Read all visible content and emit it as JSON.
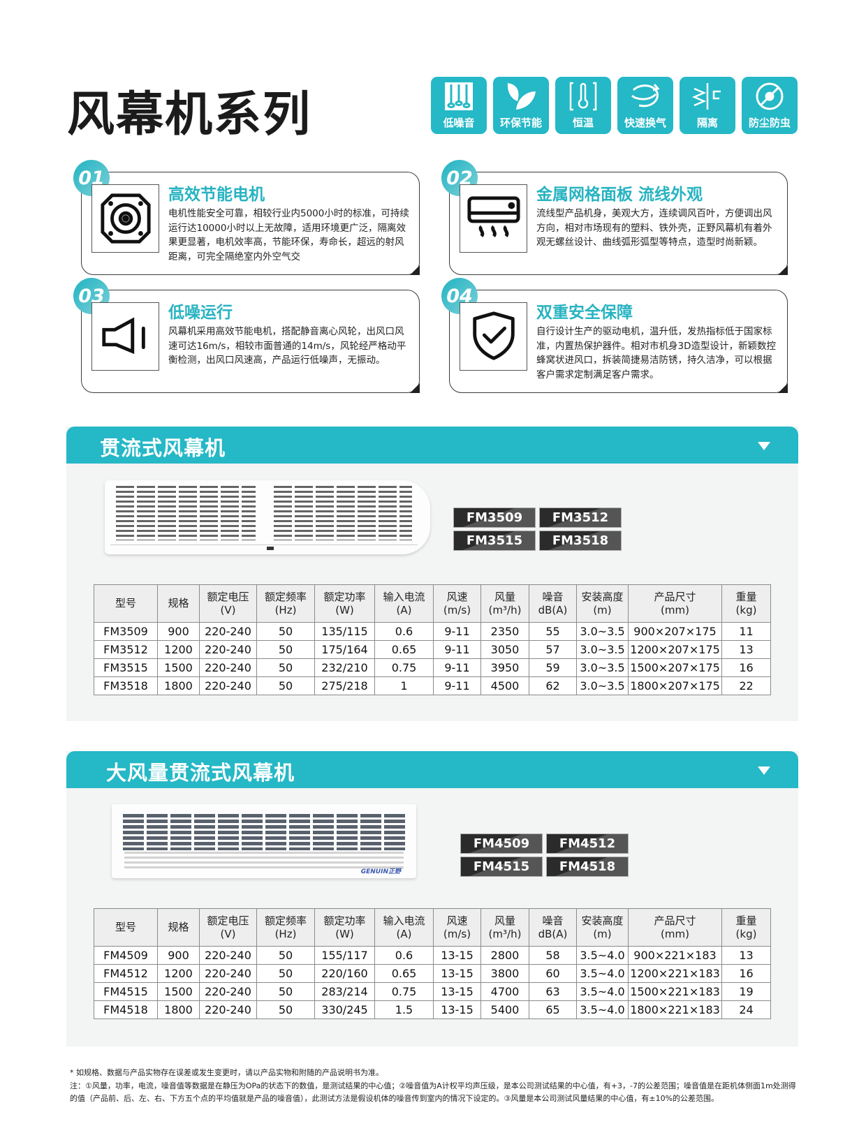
{
  "title": "风幕机系列",
  "feature_icons": [
    {
      "label": "低噪音",
      "icon": "sliders-icon"
    },
    {
      "label": "环保节能",
      "icon": "leaf-icon"
    },
    {
      "label": "恒温",
      "icon": "thermometer-icon"
    },
    {
      "label": "快速换气",
      "icon": "airflow-icon"
    },
    {
      "label": "隔离",
      "icon": "barrier-icon"
    },
    {
      "label": "防尘防虫",
      "icon": "no-bug-icon"
    }
  ],
  "cards": [
    {
      "num": "01",
      "title": "高效节能电机",
      "icon": "motor-icon",
      "body": "电机性能安全可靠，相较行业内5000小时的标准，可持续运行达10000小时以上无故障，适用环境更广泛，隔离效果更显著，电机效率高，节能环保，寿命长，超远的射风距离，可完全隔绝室内外空气交"
    },
    {
      "num": "02",
      "title": "金属网格面板 流线外观",
      "icon": "air-conditioner-icon",
      "body": "流线型产品机身，美观大方，连续调风百叶，方便调出风方向，相对市场现有的塑料、铁外壳，正野风幕机有着外观无螺丝设计、曲线弧形弧型等特点，造型时尚新颖。"
    },
    {
      "num": "03",
      "title": "低噪运行",
      "icon": "speaker-icon",
      "body": "风幕机采用高效节能电机，搭配静音离心风轮，出风口风速可达16m/s，相较市面普通的14m/s，风轮经严格动平衡检测，出风口风速高，产品运行低噪声，无振动。"
    },
    {
      "num": "04",
      "title": "双重安全保障",
      "icon": "shield-check-icon",
      "body": "自行设计生产的驱动电机，温升低，发热指标低于国家标准，内置热保护器件。相对市机身3D造型设计，新颖数控蜂窝状进风口，拆装简捷易洁防锈，持久洁净，可以根据客户需求定制满足客户需求。"
    }
  ],
  "headers": [
    "型号",
    "规格",
    "额定电压\n(V)",
    "额定频率\n(Hz)",
    "额定功率\n(W)",
    "输入电流\n(A)",
    "风速\n(m/s)",
    "风量\n(m³/h)",
    "噪音\ndB(A)",
    "安装高度\n(m)",
    "产品尺寸\n(mm)",
    "重量\n(kg)"
  ],
  "sections": [
    {
      "title": "贯流式风幕机",
      "models": [
        "FM3509",
        "FM3512",
        "FM3515",
        "FM3518"
      ],
      "rows": [
        [
          "FM3509",
          "900",
          "220-240",
          "50",
          "135/115",
          "0.6",
          "9-11",
          "2350",
          "55",
          "3.0~3.5",
          "900×207×175",
          "11"
        ],
        [
          "FM3512",
          "1200",
          "220-240",
          "50",
          "175/164",
          "0.65",
          "9-11",
          "3050",
          "57",
          "3.0~3.5",
          "1200×207×175",
          "13"
        ],
        [
          "FM3515",
          "1500",
          "220-240",
          "50",
          "232/210",
          "0.75",
          "9-11",
          "3950",
          "59",
          "3.0~3.5",
          "1500×207×175",
          "16"
        ],
        [
          "FM3518",
          "1800",
          "220-240",
          "50",
          "275/218",
          "1",
          "9-11",
          "4500",
          "62",
          "3.0~3.5",
          "1800×207×175",
          "22"
        ]
      ]
    },
    {
      "title": "大风量贯流式风幕机",
      "models": [
        "FM4509",
        "FM4512",
        "FM4515",
        "FM4518"
      ],
      "logo": "GENUIN正野",
      "rows": [
        [
          "FM4509",
          "900",
          "220-240",
          "50",
          "155/117",
          "0.6",
          "13-15",
          "2800",
          "58",
          "3.5~4.0",
          "900×221×183",
          "13"
        ],
        [
          "FM4512",
          "1200",
          "220-240",
          "50",
          "220/160",
          "0.65",
          "13-15",
          "3800",
          "60",
          "3.5~4.0",
          "1200×221×183",
          "16"
        ],
        [
          "FM4515",
          "1500",
          "220-240",
          "50",
          "283/214",
          "0.75",
          "13-15",
          "4700",
          "63",
          "3.5~4.0",
          "1500×221×183",
          "19"
        ],
        [
          "FM4518",
          "1800",
          "220-240",
          "50",
          "330/245",
          "1.5",
          "13-15",
          "5400",
          "65",
          "3.5~4.0",
          "1800×221×183",
          "24"
        ]
      ]
    }
  ],
  "footer": {
    "disclaimer": "* 如规格、数据与产品实物存在误差或发生变更时，请以产品实物和附随的产品说明书为准。",
    "note": "注：①风量，功率，电流，噪音值等数据是在静压为OPa的状态下的数值，是测试结果的中心值；②噪音值为A计权平均声压级，是本公司测试结果的中心值，有+3，-7的公差范围；噪音值是在距机体侧面1m处测得的值（产品前、后、左、右、下方五个点的平均值就是产品的噪音值），此测试方法是假设机体的噪音传到室内的情况下设定的。③风量是本公司测试风量结果的中心值，有±10%的公差范围。"
  },
  "colors": {
    "accent": "#25b8c6",
    "section_bg": "#f3f4f4",
    "badge": "#2b2b2b"
  }
}
